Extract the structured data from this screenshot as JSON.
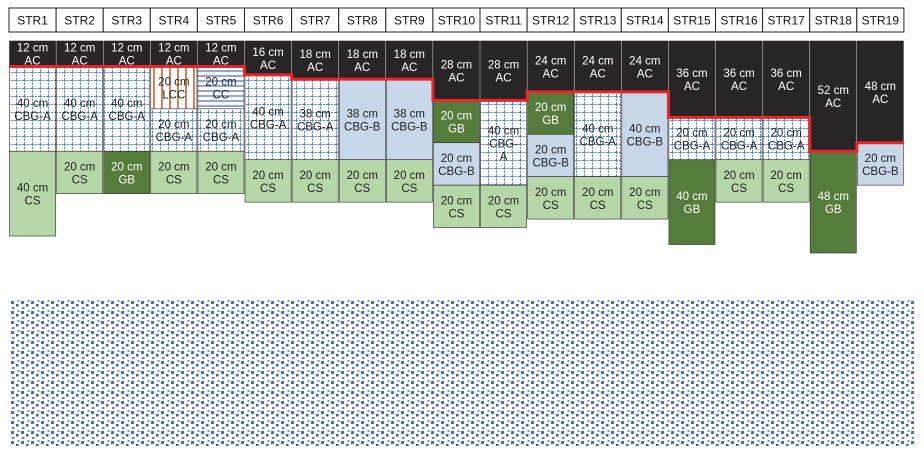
{
  "colors": {
    "AC": "#272526",
    "CBG-A": "#ffffff",
    "CBG-B": "#c9d7ea",
    "CS": "#b6d8a8",
    "GB": "#567c3c",
    "LCC": "#ffffff",
    "CC": "#ffffff",
    "outline": "#e8262a",
    "subgrade_dot": "#4a6fae"
  },
  "sections": [
    {
      "id": "STR1",
      "layers": [
        {
          "t": 12,
          "m": "AC",
          "label": "12 cm\nAC"
        },
        {
          "t": 40,
          "m": "CBG-A",
          "label": "40 cm\nCBG-A"
        },
        {
          "t": 40,
          "m": "CS",
          "label": "40 cm\nCS"
        }
      ]
    },
    {
      "id": "STR2",
      "layers": [
        {
          "t": 12,
          "m": "AC",
          "label": "12 cm\nAC"
        },
        {
          "t": 40,
          "m": "CBG-A",
          "label": "40 cm\nCBG-A"
        },
        {
          "t": 20,
          "m": "CS",
          "label": "20 cm\nCS"
        }
      ]
    },
    {
      "id": "STR3",
      "layers": [
        {
          "t": 12,
          "m": "AC",
          "label": "12 cm\nAC"
        },
        {
          "t": 40,
          "m": "CBG-A",
          "label": "40 cm\nCBG-A"
        },
        {
          "t": 20,
          "m": "GB",
          "label": "20 cm\nGB"
        }
      ]
    },
    {
      "id": "STR4",
      "layers": [
        {
          "t": 12,
          "m": "AC",
          "label": "12 cm\nAC"
        },
        {
          "t": 20,
          "m": "LCC",
          "label": "20 cm\nLCC"
        },
        {
          "t": 20,
          "m": "CBG-A",
          "label": "20 cm\nCBG-A"
        },
        {
          "t": 20,
          "m": "CS",
          "label": "20 cm\nCS"
        }
      ]
    },
    {
      "id": "STR5",
      "layers": [
        {
          "t": 12,
          "m": "AC",
          "label": "12 cm\nAC"
        },
        {
          "t": 20,
          "m": "CC",
          "label": "20 cm\nCC"
        },
        {
          "t": 20,
          "m": "CBG-A",
          "label": "20 cm\nCBG-A"
        },
        {
          "t": 20,
          "m": "CS",
          "label": "20 cm\nCS"
        }
      ]
    },
    {
      "id": "STR6",
      "layers": [
        {
          "t": 16,
          "m": "AC",
          "label": "16 cm\nAC"
        },
        {
          "t": 40,
          "m": "CBG-A",
          "label": "40 cm\nCBG-A"
        },
        {
          "t": 20,
          "m": "CS",
          "label": "20 cm\nCS"
        }
      ]
    },
    {
      "id": "STR7",
      "layers": [
        {
          "t": 18,
          "m": "AC",
          "label": "18 cm\nAC"
        },
        {
          "t": 38,
          "m": "CBG-A",
          "label": "38 cm\nCBG-A"
        },
        {
          "t": 20,
          "m": "CS",
          "label": "20 cm\nCS"
        }
      ]
    },
    {
      "id": "STR8",
      "layers": [
        {
          "t": 18,
          "m": "AC",
          "label": "18 cm\nAC"
        },
        {
          "t": 38,
          "m": "CBG-B",
          "label": "38 cm\nCBG-B"
        },
        {
          "t": 20,
          "m": "CS",
          "label": "20 cm\nCS"
        }
      ]
    },
    {
      "id": "STR9",
      "layers": [
        {
          "t": 18,
          "m": "AC",
          "label": "18 cm\nAC"
        },
        {
          "t": 38,
          "m": "CBG-B",
          "label": "38 cm\nCBG-B"
        },
        {
          "t": 20,
          "m": "CS",
          "label": "20 cm\nCS"
        }
      ]
    },
    {
      "id": "STR10",
      "layers": [
        {
          "t": 28,
          "m": "AC",
          "label": "28 cm\nAC"
        },
        {
          "t": 20,
          "m": "GB",
          "label": "20 cm\nGB"
        },
        {
          "t": 20,
          "m": "CBG-B",
          "label": "20 cm\nCBG-B"
        },
        {
          "t": 20,
          "m": "CS",
          "label": "20 cm\nCS"
        }
      ]
    },
    {
      "id": "STR11",
      "layers": [
        {
          "t": 28,
          "m": "AC",
          "label": "28 cm\nAC"
        },
        {
          "t": 40,
          "m": "CBG-A",
          "label": "40 cm\nCBG-\nA"
        },
        {
          "t": 20,
          "m": "CS",
          "label": "20 cm\nCS"
        }
      ]
    },
    {
      "id": "STR12",
      "layers": [
        {
          "t": 24,
          "m": "AC",
          "label": "24 cm\nAC"
        },
        {
          "t": 20,
          "m": "GB",
          "label": "20 cm\nGB"
        },
        {
          "t": 20,
          "m": "CBG-B",
          "label": "20 cm\nCBG-B"
        },
        {
          "t": 20,
          "m": "CS",
          "label": "20 cm\nCS"
        }
      ]
    },
    {
      "id": "STR13",
      "layers": [
        {
          "t": 24,
          "m": "AC",
          "label": "24 cm\nAC"
        },
        {
          "t": 40,
          "m": "CBG-A",
          "label": "40 cm\nCBG-A"
        },
        {
          "t": 20,
          "m": "CS",
          "label": "20 cm\nCS"
        }
      ]
    },
    {
      "id": "STR14",
      "layers": [
        {
          "t": 24,
          "m": "AC",
          "label": "24 cm\nAC"
        },
        {
          "t": 40,
          "m": "CBG-B",
          "label": "40 cm\nCBG-B"
        },
        {
          "t": 20,
          "m": "CS",
          "label": "20 cm\nCS"
        }
      ]
    },
    {
      "id": "STR15",
      "layers": [
        {
          "t": 36,
          "m": "AC",
          "label": "36 cm\nAC"
        },
        {
          "t": 20,
          "m": "CBG-A",
          "label": "20 cm\nCBG-A"
        },
        {
          "t": 40,
          "m": "GB",
          "label": "40 cm\nGB"
        }
      ]
    },
    {
      "id": "STR16",
      "layers": [
        {
          "t": 36,
          "m": "AC",
          "label": "36 cm\nAC"
        },
        {
          "t": 20,
          "m": "CBG-A",
          "label": "20 cm\nCBG-A"
        },
        {
          "t": 20,
          "m": "CS",
          "label": "20 cm\nCS"
        }
      ]
    },
    {
      "id": "STR17",
      "layers": [
        {
          "t": 36,
          "m": "AC",
          "label": "36 cm\nAC"
        },
        {
          "t": 20,
          "m": "CBG-A",
          "label": "20 cm\nCBG-A"
        },
        {
          "t": 20,
          "m": "CS",
          "label": "20 cm\nCS"
        }
      ]
    },
    {
      "id": "STR18",
      "layers": [
        {
          "t": 52,
          "m": "AC",
          "label": "52 cm\nAC"
        },
        {
          "t": 48,
          "m": "GB",
          "label": "48 cm\nGB"
        }
      ]
    },
    {
      "id": "STR19",
      "layers": [
        {
          "t": 48,
          "m": "AC",
          "label": "48 cm\nAC"
        },
        {
          "t": 20,
          "m": "CBG-B",
          "label": "20 cm\nCBG-B"
        }
      ]
    }
  ]
}
